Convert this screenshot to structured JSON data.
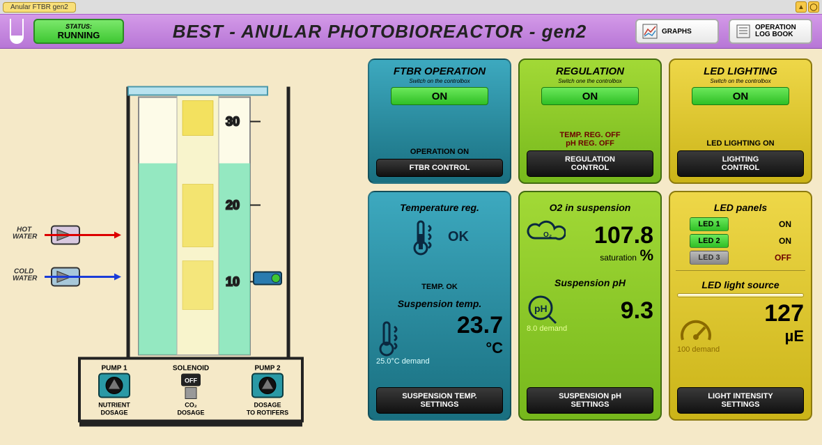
{
  "tab_label": "Anular FTBR gen2",
  "status_label": "STATUS:",
  "status_value": "RUNNING",
  "title": "BEST - ANULAR PHOTOBIOREACTOR  - gen2",
  "hdr_graphs": "GRAPHS",
  "hdr_log1": "OPERATION",
  "hdr_log2": "LOG BOOK",
  "colors": {
    "page_bg": "#f5e9c8",
    "header_grad_top": "#d49ae8",
    "header_grad_bot": "#b776d6",
    "panel_teal_top": "#3da9bf",
    "panel_teal_bot": "#196f80",
    "panel_green_top": "#a2d936",
    "panel_green_bot": "#76b81c",
    "panel_yellow_top": "#eed748",
    "panel_yellow_bot": "#cbb418",
    "on_pill": "#2fbf25",
    "warn_text": "#6b0000"
  },
  "reactor": {
    "scale_ticks": [
      30,
      20,
      10
    ],
    "hot_label": "HOT\nWATER",
    "cold_label": "COLD\nWATER",
    "pump1_title": "PUMP 1",
    "pump1_sub1": "NUTRIENT",
    "pump1_sub2": "DOSAGE",
    "solenoid_title": "SOLENOID",
    "solenoid_state": "OFF",
    "solenoid_sub1": "CO₂",
    "solenoid_sub2": "DOSAGE",
    "pump2_title": "PUMP 2",
    "pump2_sub1": "DOSAGE",
    "pump2_sub2": "TO ROTIFERS",
    "fill_level": 0.55,
    "water_color": "#79e4b7",
    "led_color": "#f3e15a"
  },
  "panels": {
    "op": {
      "title": "FTBR OPERATION",
      "sub": "Switch on the controlbox",
      "state": "ON",
      "status": "OPERATION ON",
      "btn": "FTBR CONTROL"
    },
    "reg": {
      "title": "REGULATION",
      "sub": "Switch one the controlbox",
      "state": "ON",
      "warn1": "TEMP. REG. OFF",
      "warn2": "pH REG. OFF",
      "btn": "REGULATION CONTROL"
    },
    "led": {
      "title": "LED LIGHTING",
      "sub": "Switch on the controlbox",
      "state": "ON",
      "status": "LED LIGHTING ON",
      "btn": "LIGHTING CONTROL"
    },
    "temp": {
      "title1": "Temperature reg.",
      "status1": "TEMP. OK",
      "ok_label": "OK",
      "title2": "Suspension temp.",
      "value": "23.7",
      "unit": "°C",
      "demand": "25.0°C demand",
      "btn1": "SUSPENSION TEMP.",
      "btn2": "SETTINGS"
    },
    "o2": {
      "title1": "O2 in suspension",
      "value1": "107.8",
      "unit1": "%",
      "sat": "saturation",
      "title2": "Suspension pH",
      "value2": "9.3",
      "demand": "8.0 demand",
      "btn1": "SUSPENSION pH",
      "btn2": "SETTINGS"
    },
    "light": {
      "title1": "LED panels",
      "leds": [
        {
          "name": "LED 1",
          "state": "ON",
          "on": true
        },
        {
          "name": "LED 2",
          "state": "ON",
          "on": true
        },
        {
          "name": "LED 3",
          "state": "OFF",
          "on": false
        }
      ],
      "title2": "LED light source",
      "value": "127",
      "unit": "µE",
      "demand": "100 demand",
      "btn1": "LIGHT INTENSITY",
      "btn2": "SETTINGS"
    }
  }
}
